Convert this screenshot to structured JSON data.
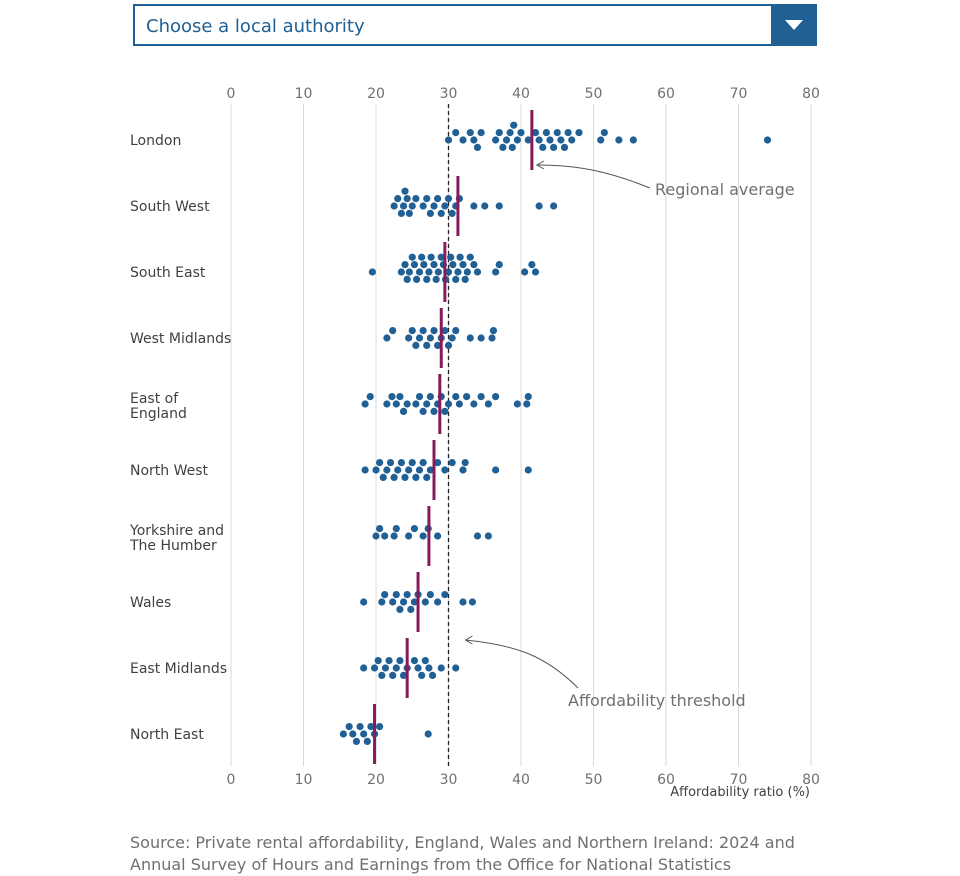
{
  "selector": {
    "label": "Choose a local authority"
  },
  "colors": {
    "dot": "#206095",
    "average": "#871a5b",
    "gridline": "#d9d9d9",
    "threshold": "#222222",
    "annotation": "#707071"
  },
  "source_text": "Source: Private rental affordability, England, Wales and Northern Ireland: 2024 and Annual Survey of Hours and Earnings from the Office for National Statistics",
  "chart_data": {
    "type": "scatter",
    "xlabel": "Affordability ratio (%)",
    "xlim": [
      0,
      80
    ],
    "xticks": [
      0,
      10,
      20,
      30,
      40,
      50,
      60,
      70,
      80
    ],
    "grid": true,
    "threshold": {
      "value": 30,
      "label": "Affordability threshold"
    },
    "average_label": "Regional average",
    "series": [
      {
        "name": "London",
        "average": 41.5,
        "values": [
          30,
          31,
          32,
          33,
          33.5,
          34,
          34.5,
          36.5,
          37,
          37.5,
          38,
          38.5,
          38.8,
          39,
          39.5,
          40,
          41,
          42,
          42.5,
          43,
          43.5,
          44,
          44.5,
          45,
          45.5,
          46,
          46.5,
          47,
          48,
          51,
          51.5,
          53.5,
          55.5,
          74
        ]
      },
      {
        "name": "South West",
        "average": 31.3,
        "values": [
          22.5,
          23,
          23.5,
          23.8,
          24,
          24.3,
          24.6,
          25,
          25.5,
          26.5,
          27,
          27.5,
          28,
          28.5,
          29,
          29.5,
          30,
          30.5,
          31,
          31.5,
          33.5,
          35,
          37,
          42.5,
          44.5
        ]
      },
      {
        "name": "South East",
        "average": 29.5,
        "values": [
          19.5,
          23.5,
          24,
          24.3,
          24.6,
          25,
          25.3,
          25.6,
          26,
          26.3,
          26.6,
          27,
          27.3,
          27.6,
          28,
          28.3,
          28.6,
          29,
          29.3,
          29.6,
          30,
          30.3,
          30.6,
          31,
          31.3,
          31.6,
          32,
          32.3,
          32.6,
          33,
          33.5,
          34,
          36.5,
          37,
          40.5,
          41.5,
          42
        ]
      },
      {
        "name": "West Midlands",
        "average": 29,
        "values": [
          21.5,
          22.3,
          24.5,
          25,
          25.5,
          26,
          26.5,
          27,
          27.5,
          28,
          28.5,
          29,
          29.5,
          30,
          30.5,
          31,
          33,
          34.5,
          36,
          36.2
        ]
      },
      {
        "name": "East of England",
        "average": 28.8,
        "values": [
          18.5,
          19.2,
          21.5,
          22.2,
          22.8,
          23.3,
          23.8,
          24.3,
          25.5,
          26,
          26.5,
          27,
          27.5,
          28,
          28.5,
          29,
          29.5,
          30,
          31,
          31.5,
          32.5,
          33.5,
          34.5,
          35.5,
          36.5,
          39.5,
          40.8,
          41
        ]
      },
      {
        "name": "North West",
        "average": 28,
        "values": [
          18.5,
          20,
          20.5,
          21,
          21.5,
          22,
          22.5,
          23,
          23.5,
          24,
          24.5,
          25,
          25.5,
          26,
          26.5,
          27,
          27.5,
          28.5,
          29.5,
          30.5,
          32,
          32.3,
          36.5,
          41
        ]
      },
      {
        "name": "Yorkshire and The Humber",
        "average": 27.3,
        "values": [
          20,
          20.5,
          21.2,
          22.5,
          22.8,
          24.5,
          25.3,
          26.5,
          27.2,
          28.5,
          34,
          35.5
        ]
      },
      {
        "name": "Wales",
        "average": 25.8,
        "values": [
          18.3,
          20.8,
          21.2,
          22.3,
          22.8,
          23.3,
          23.8,
          24.3,
          24.8,
          25.3,
          25.8,
          26.8,
          27.5,
          28.5,
          29.5,
          32,
          33.3
        ]
      },
      {
        "name": "East Midlands",
        "average": 24.3,
        "values": [
          18.3,
          19.8,
          20.3,
          20.8,
          21.3,
          21.8,
          22.3,
          22.8,
          23.3,
          23.8,
          24.3,
          25.3,
          25.8,
          26.3,
          26.8,
          27.3,
          27.8,
          29,
          31
        ]
      },
      {
        "name": "North East",
        "average": 19.8,
        "values": [
          15.5,
          16.3,
          16.8,
          17.3,
          17.8,
          18.3,
          18.8,
          19.3,
          19.8,
          20.5,
          27.2
        ]
      }
    ]
  }
}
